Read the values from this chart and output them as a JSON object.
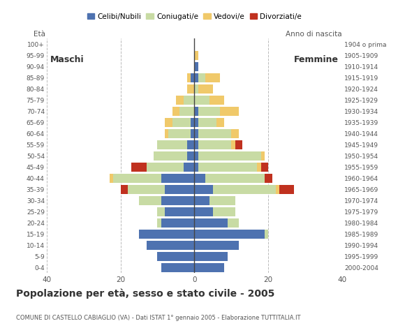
{
  "age_groups": [
    "0-4",
    "5-9",
    "10-14",
    "15-19",
    "20-24",
    "25-29",
    "30-34",
    "35-39",
    "40-44",
    "45-49",
    "50-54",
    "55-59",
    "60-64",
    "65-69",
    "70-74",
    "75-79",
    "80-84",
    "85-89",
    "90-94",
    "95-99",
    "100+"
  ],
  "birth_years": [
    "2000-2004",
    "1995-1999",
    "1990-1994",
    "1985-1989",
    "1980-1984",
    "1975-1979",
    "1970-1974",
    "1965-1969",
    "1960-1964",
    "1955-1959",
    "1950-1954",
    "1945-1949",
    "1940-1944",
    "1935-1939",
    "1930-1934",
    "1925-1929",
    "1920-1924",
    "1915-1919",
    "1910-1914",
    "1905-1909",
    "1904 o prima"
  ],
  "males": {
    "celibe": [
      9,
      10,
      13,
      15,
      9,
      8,
      9,
      8,
      9,
      3,
      2,
      2,
      1,
      1,
      0,
      0,
      0,
      1,
      0,
      0,
      0
    ],
    "coniugato": [
      0,
      0,
      0,
      0,
      1,
      2,
      6,
      10,
      13,
      10,
      9,
      8,
      6,
      5,
      4,
      3,
      0,
      0,
      0,
      0,
      0
    ],
    "vedovo": [
      0,
      0,
      0,
      0,
      0,
      0,
      0,
      0,
      1,
      0,
      0,
      0,
      1,
      2,
      2,
      2,
      2,
      1,
      0,
      0,
      0
    ],
    "divorziato": [
      0,
      0,
      0,
      0,
      0,
      0,
      0,
      2,
      0,
      4,
      0,
      0,
      0,
      0,
      0,
      0,
      0,
      0,
      0,
      0,
      0
    ]
  },
  "females": {
    "nubile": [
      8,
      9,
      12,
      19,
      9,
      5,
      4,
      5,
      3,
      1,
      1,
      1,
      1,
      1,
      1,
      0,
      0,
      1,
      1,
      0,
      0
    ],
    "coniugata": [
      0,
      0,
      0,
      1,
      3,
      6,
      7,
      17,
      16,
      16,
      17,
      9,
      9,
      5,
      6,
      4,
      1,
      2,
      0,
      0,
      0
    ],
    "vedova": [
      0,
      0,
      0,
      0,
      0,
      0,
      0,
      1,
      0,
      1,
      1,
      1,
      2,
      2,
      5,
      4,
      4,
      4,
      0,
      1,
      0
    ],
    "divorziata": [
      0,
      0,
      0,
      0,
      0,
      0,
      0,
      4,
      2,
      2,
      0,
      2,
      0,
      0,
      0,
      0,
      0,
      0,
      0,
      0,
      0
    ]
  },
  "colors": {
    "celibe_nubile": "#4e72b0",
    "coniugato": "#c8dba4",
    "vedovo": "#f0c96a",
    "divorziato": "#c0311f"
  },
  "title": "Popolazione per età, sesso e stato civile - 2005",
  "subtitle": "COMUNE DI CASTELLO CABIAGLIO (VA) - Dati ISTAT 1° gennaio 2005 - Elaborazione TUTTITALIA.IT",
  "label_maschi": "Maschi",
  "label_femmine": "Femmine",
  "label_eta": "Età",
  "label_anno": "Anno di nascita",
  "xlim": 40,
  "background_color": "#ffffff",
  "grid_color": "#bbbbbb",
  "bar_height": 0.82
}
